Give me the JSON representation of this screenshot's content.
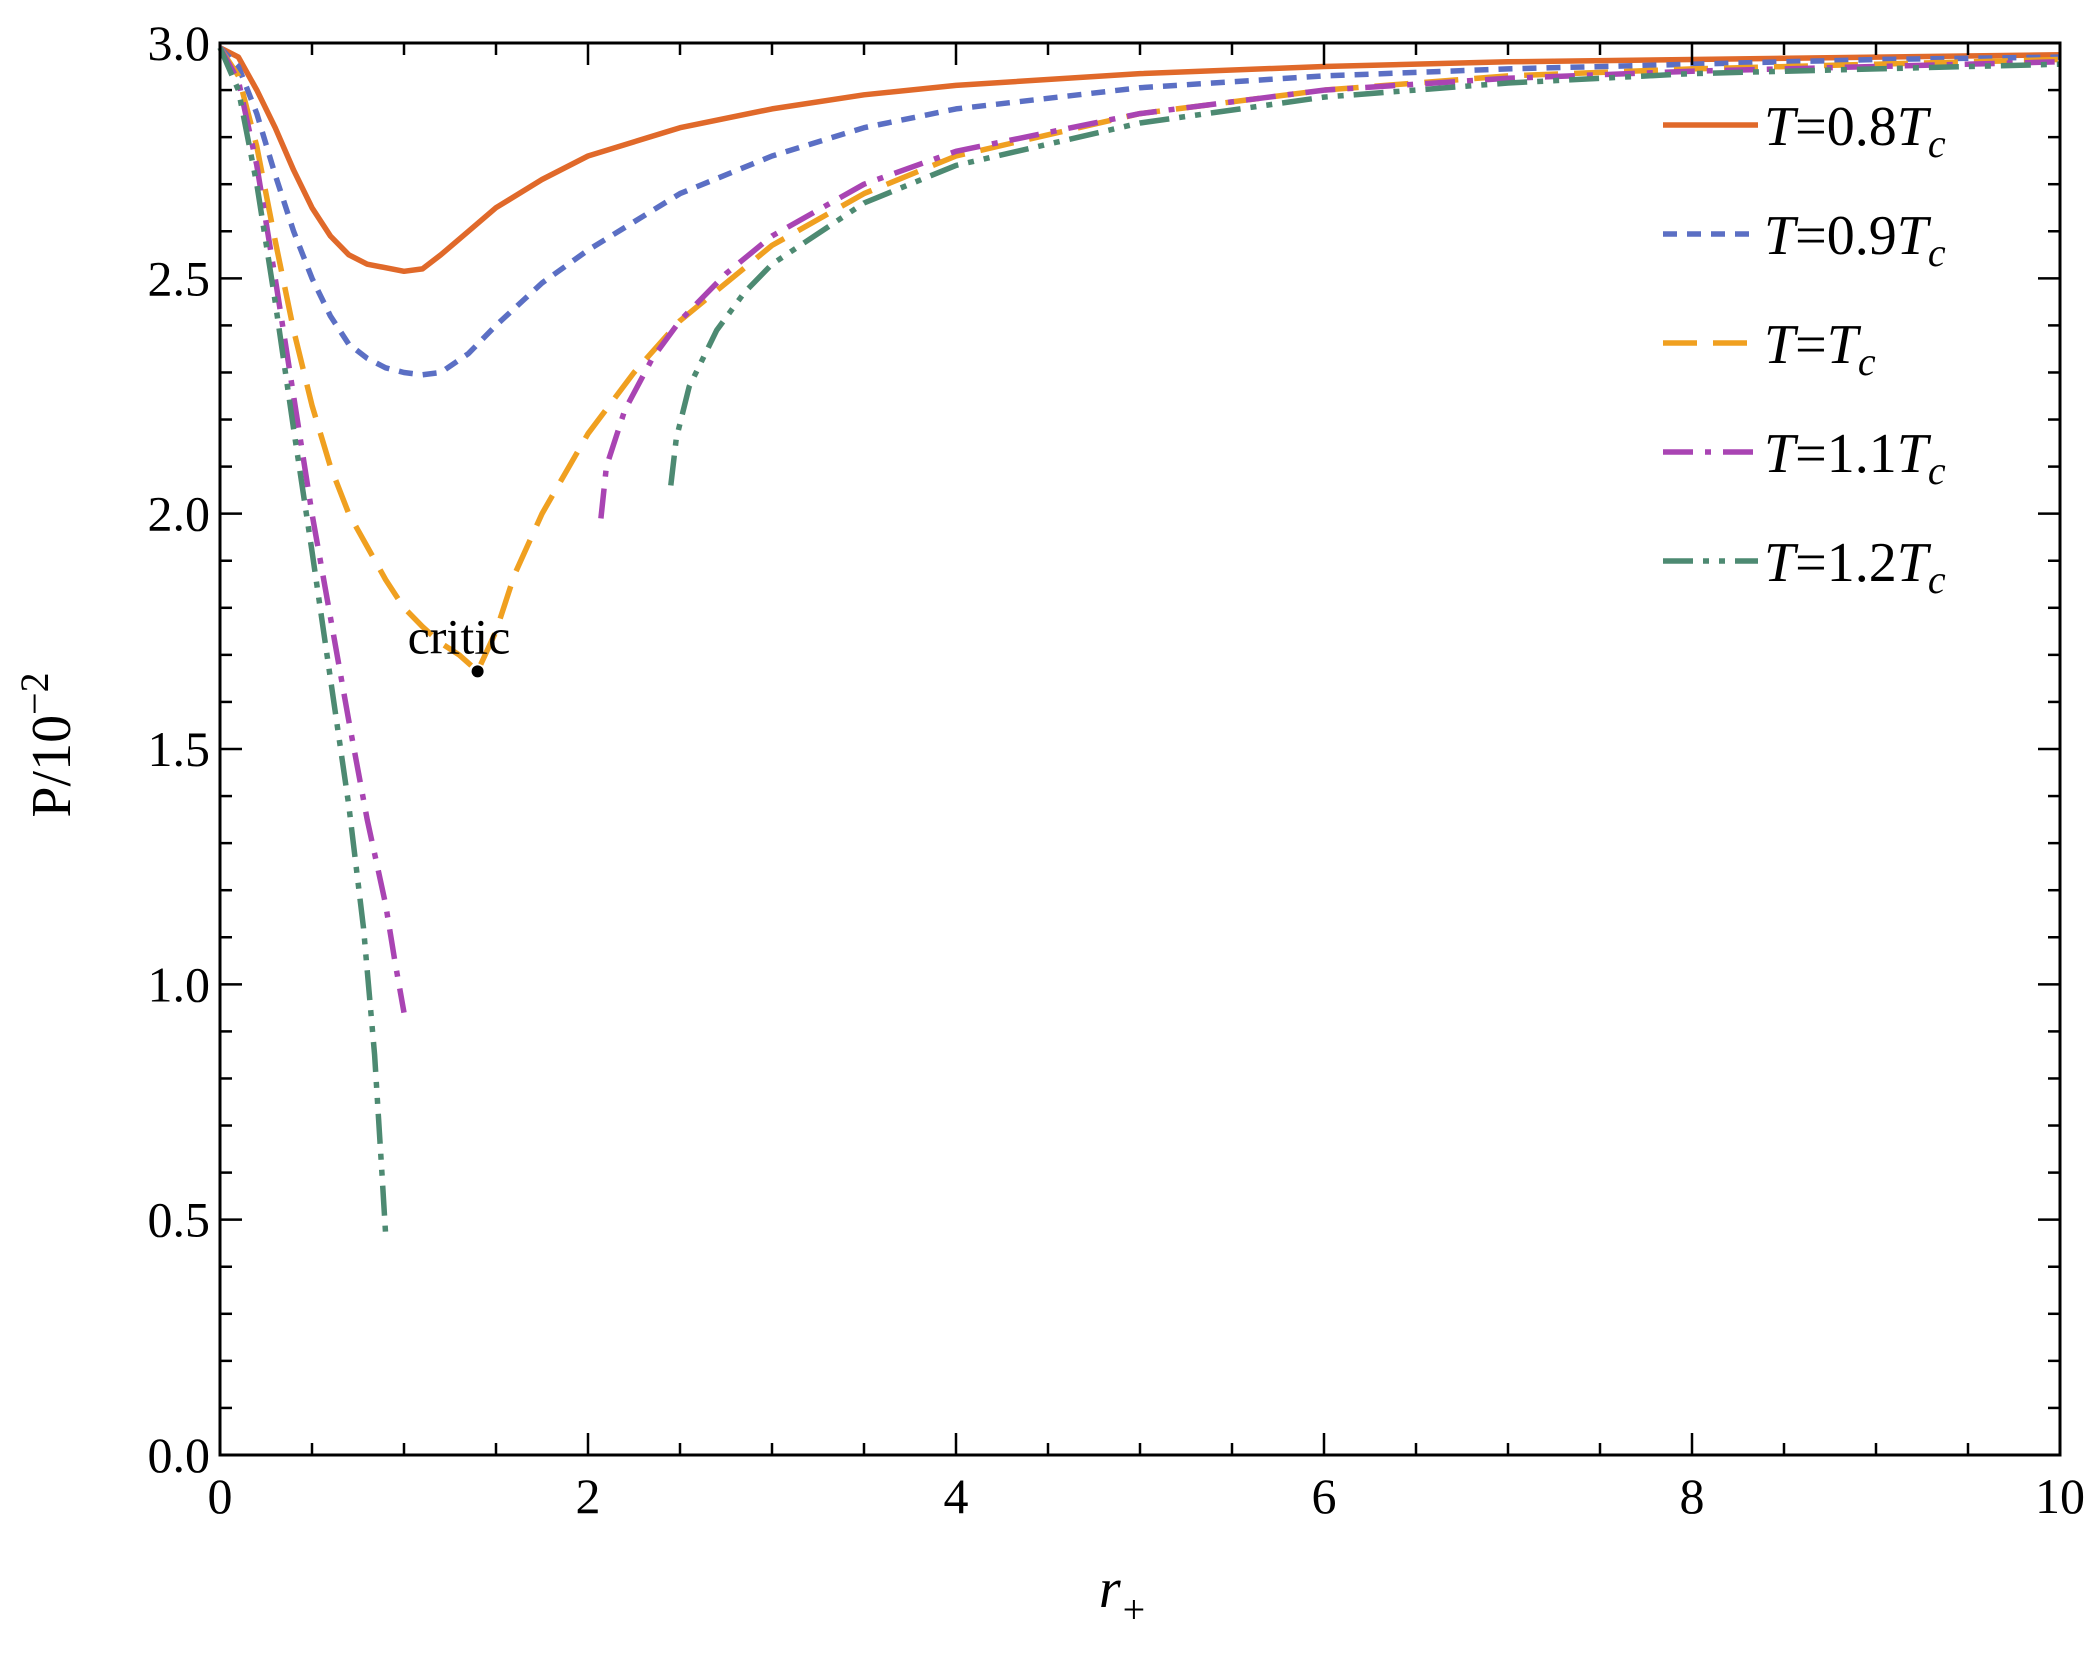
{
  "chart_data": {
    "type": "line",
    "xlabel": "r",
    "xlabel_subscript": "+",
    "ylabel": "P/10",
    "ylabel_superscript": "−2",
    "xlim": [
      0,
      10
    ],
    "ylim": [
      0,
      3
    ],
    "x_ticks": [
      "0",
      "2",
      "4",
      "6",
      "8",
      "10"
    ],
    "y_ticks": [
      "0.0",
      "0.5",
      "1.0",
      "1.5",
      "2.0",
      "2.5",
      "3.0"
    ],
    "grid": false,
    "legend_position": "top-right",
    "colors": {
      "t08": "#e0692a",
      "t09": "#5b6fc4",
      "t10": "#f0a020",
      "t11": "#a944b3",
      "t12": "#4d8a72"
    },
    "series": [
      {
        "key": "t08",
        "legend": {
          "T": "T",
          "eq": "=0.8",
          "Tc": "T",
          "sub": "c"
        },
        "dash": "solid",
        "segments": [
          [
            [
              0,
              2.99
            ],
            [
              0.1,
              2.97
            ],
            [
              0.2,
              2.9
            ],
            [
              0.3,
              2.82
            ],
            [
              0.4,
              2.73
            ],
            [
              0.5,
              2.65
            ],
            [
              0.6,
              2.59
            ],
            [
              0.7,
              2.55
            ],
            [
              0.8,
              2.53
            ],
            [
              1.0,
              2.515
            ],
            [
              1.1,
              2.52
            ],
            [
              1.2,
              2.55
            ],
            [
              1.35,
              2.6
            ],
            [
              1.5,
              2.65
            ],
            [
              1.75,
              2.71
            ],
            [
              2.0,
              2.76
            ],
            [
              2.5,
              2.82
            ],
            [
              3.0,
              2.86
            ],
            [
              3.5,
              2.89
            ],
            [
              4.0,
              2.91
            ],
            [
              5.0,
              2.935
            ],
            [
              6.0,
              2.95
            ],
            [
              7.0,
              2.96
            ],
            [
              8.0,
              2.965
            ],
            [
              9.0,
              2.97
            ],
            [
              10.0,
              2.975
            ]
          ]
        ]
      },
      {
        "key": "t09",
        "legend": {
          "T": "T",
          "eq": "=0.9",
          "Tc": "T",
          "sub": "c"
        },
        "dash": "short",
        "segments": [
          [
            [
              0,
              2.99
            ],
            [
              0.1,
              2.95
            ],
            [
              0.2,
              2.85
            ],
            [
              0.3,
              2.72
            ],
            [
              0.4,
              2.6
            ],
            [
              0.5,
              2.5
            ],
            [
              0.6,
              2.42
            ],
            [
              0.7,
              2.36
            ],
            [
              0.8,
              2.33
            ],
            [
              0.9,
              2.31
            ],
            [
              1.0,
              2.3
            ],
            [
              1.1,
              2.295
            ],
            [
              1.2,
              2.3
            ],
            [
              1.35,
              2.34
            ],
            [
              1.5,
              2.4
            ],
            [
              1.75,
              2.49
            ],
            [
              2.0,
              2.56
            ],
            [
              2.5,
              2.68
            ],
            [
              3.0,
              2.76
            ],
            [
              3.5,
              2.82
            ],
            [
              4.0,
              2.86
            ],
            [
              5.0,
              2.905
            ],
            [
              6.0,
              2.93
            ],
            [
              7.0,
              2.945
            ],
            [
              8.0,
              2.955
            ],
            [
              9.0,
              2.965
            ],
            [
              10.0,
              2.97
            ]
          ]
        ]
      },
      {
        "key": "t10",
        "legend": {
          "T": "T",
          "eq": "=",
          "Tc": "T",
          "sub": "c"
        },
        "dash": "long",
        "segments": [
          [
            [
              0,
              2.99
            ],
            [
              0.1,
              2.93
            ],
            [
              0.2,
              2.78
            ],
            [
              0.3,
              2.58
            ],
            [
              0.4,
              2.39
            ],
            [
              0.5,
              2.23
            ],
            [
              0.6,
              2.1
            ],
            [
              0.7,
              2.0
            ],
            [
              0.8,
              1.93
            ],
            [
              0.9,
              1.86
            ],
            [
              1.0,
              1.8
            ],
            [
              1.1,
              1.76
            ],
            [
              1.2,
              1.725
            ],
            [
              1.3,
              1.7
            ],
            [
              1.4,
              1.665
            ],
            [
              1.5,
              1.75
            ],
            [
              1.6,
              1.87
            ],
            [
              1.75,
              2.0
            ],
            [
              2.0,
              2.17
            ],
            [
              2.25,
              2.3
            ],
            [
              2.5,
              2.41
            ],
            [
              3.0,
              2.57
            ],
            [
              3.5,
              2.68
            ],
            [
              4.0,
              2.76
            ],
            [
              5.0,
              2.85
            ],
            [
              6.0,
              2.9
            ],
            [
              7.0,
              2.93
            ],
            [
              8.0,
              2.945
            ],
            [
              9.0,
              2.955
            ],
            [
              10.0,
              2.965
            ]
          ]
        ]
      },
      {
        "key": "t11",
        "legend": {
          "T": "T",
          "eq": "=1.1",
          "Tc": "T",
          "sub": "c"
        },
        "dash": "dashdot",
        "segments": [
          [
            [
              0,
              2.99
            ],
            [
              0.1,
              2.92
            ],
            [
              0.2,
              2.74
            ],
            [
              0.3,
              2.5
            ],
            [
              0.4,
              2.25
            ],
            [
              0.5,
              2.0
            ],
            [
              0.6,
              1.78
            ],
            [
              0.7,
              1.56
            ],
            [
              0.8,
              1.35
            ],
            [
              0.9,
              1.17
            ],
            [
              0.95,
              1.05
            ],
            [
              1.0,
              0.94
            ]
          ],
          [
            [
              2.07,
              1.99
            ],
            [
              2.1,
              2.1
            ],
            [
              2.2,
              2.22
            ],
            [
              2.35,
              2.33
            ],
            [
              2.5,
              2.41
            ],
            [
              2.75,
              2.51
            ],
            [
              3.0,
              2.59
            ],
            [
              3.5,
              2.7
            ],
            [
              4.0,
              2.77
            ],
            [
              5.0,
              2.85
            ],
            [
              6.0,
              2.9
            ],
            [
              7.0,
              2.925
            ],
            [
              8.0,
              2.94
            ],
            [
              9.0,
              2.95
            ],
            [
              10.0,
              2.96
            ]
          ]
        ]
      },
      {
        "key": "t12",
        "legend": {
          "T": "T",
          "eq": "=1.2",
          "Tc": "T",
          "sub": "c"
        },
        "dash": "dashdotdot",
        "segments": [
          [
            [
              0,
              2.99
            ],
            [
              0.1,
              2.9
            ],
            [
              0.2,
              2.7
            ],
            [
              0.3,
              2.45
            ],
            [
              0.4,
              2.18
            ],
            [
              0.5,
              1.92
            ],
            [
              0.6,
              1.65
            ],
            [
              0.7,
              1.38
            ],
            [
              0.78,
              1.12
            ],
            [
              0.84,
              0.85
            ],
            [
              0.88,
              0.6
            ],
            [
              0.9,
              0.47
            ]
          ],
          [
            [
              2.45,
              2.06
            ],
            [
              2.48,
              2.16
            ],
            [
              2.55,
              2.27
            ],
            [
              2.7,
              2.39
            ],
            [
              2.85,
              2.47
            ],
            [
              3.0,
              2.53
            ],
            [
              3.5,
              2.66
            ],
            [
              4.0,
              2.74
            ],
            [
              5.0,
              2.83
            ],
            [
              6.0,
              2.885
            ],
            [
              7.0,
              2.915
            ],
            [
              8.0,
              2.935
            ],
            [
              9.0,
              2.945
            ],
            [
              10.0,
              2.955
            ]
          ]
        ]
      }
    ],
    "annotations": [
      {
        "text": "critic",
        "x": 1.4,
        "y": 1.665
      }
    ]
  }
}
